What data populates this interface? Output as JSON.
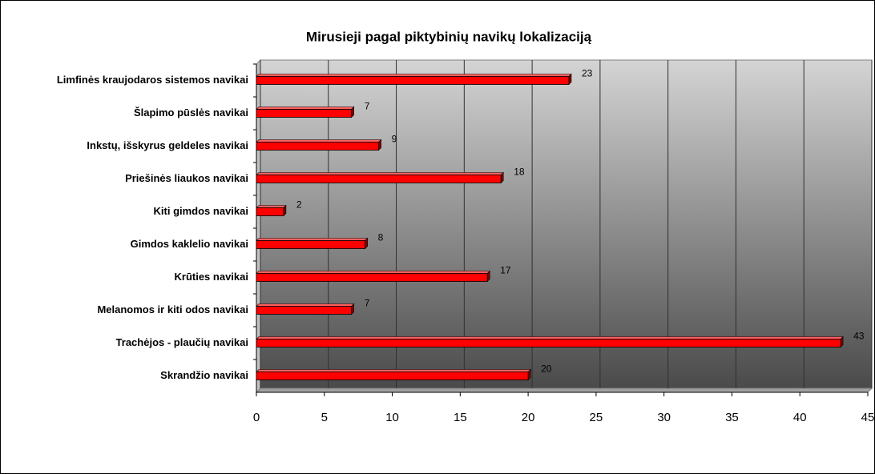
{
  "chart_data": {
    "type": "bar",
    "orientation": "horizontal",
    "title": "Mirusieji pagal piktybinių navikų lokalizaciją",
    "categories": [
      "Limfinės kraujodaros sistemos navikai",
      "Šlapimo pūslės navikai",
      "Inkstų, išskyrus geldeles navikai",
      "Priešinės liaukos navikai",
      "Kiti gimdos navikai",
      "Gimdos kaklelio navikai",
      "Krūties navikai",
      "Melanomos ir kiti odos navikai",
      "Trachėjos - plaučių navikai",
      "Skrandžio navikai"
    ],
    "values": [
      23,
      7,
      9,
      18,
      2,
      8,
      17,
      7,
      43,
      20
    ],
    "color": "#ff0000",
    "xlim": [
      0,
      45
    ],
    "xticks": [
      0,
      5,
      10,
      15,
      20,
      25,
      30,
      35,
      40,
      45
    ],
    "grid": true
  }
}
